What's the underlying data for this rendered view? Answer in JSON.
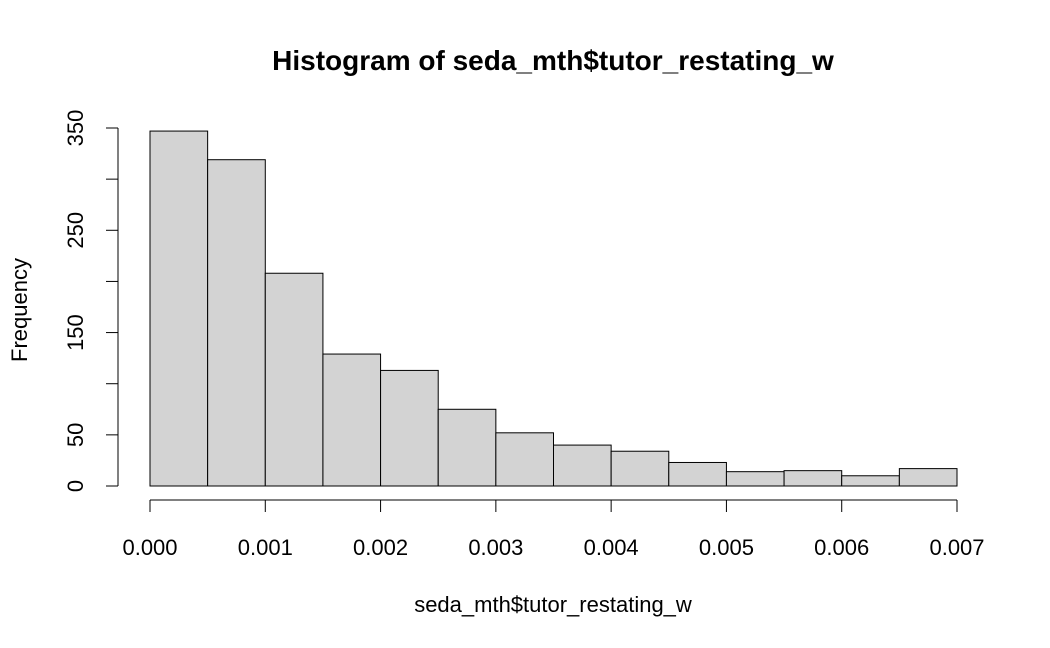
{
  "chart_data": {
    "type": "bar",
    "title": "Histogram of seda_mth$tutor_restating_w",
    "xlabel": "seda_mth$tutor_restating_w",
    "ylabel": "Frequency",
    "bins": [
      {
        "start": 0.0,
        "end": 0.0005,
        "count": 347
      },
      {
        "start": 0.0005,
        "end": 0.001,
        "count": 319
      },
      {
        "start": 0.001,
        "end": 0.0015,
        "count": 208
      },
      {
        "start": 0.0015,
        "end": 0.002,
        "count": 129
      },
      {
        "start": 0.002,
        "end": 0.0025,
        "count": 113
      },
      {
        "start": 0.0025,
        "end": 0.003,
        "count": 75
      },
      {
        "start": 0.003,
        "end": 0.0035,
        "count": 52
      },
      {
        "start": 0.0035,
        "end": 0.004,
        "count": 40
      },
      {
        "start": 0.004,
        "end": 0.0045,
        "count": 34
      },
      {
        "start": 0.0045,
        "end": 0.005,
        "count": 23
      },
      {
        "start": 0.005,
        "end": 0.0055,
        "count": 14
      },
      {
        "start": 0.0055,
        "end": 0.006,
        "count": 15
      },
      {
        "start": 0.006,
        "end": 0.0065,
        "count": 10
      },
      {
        "start": 0.0065,
        "end": 0.007,
        "count": 17
      }
    ],
    "xlim": [
      0,
      0.007
    ],
    "ylim": [
      0,
      350
    ],
    "x_ticks": [
      0,
      0.001,
      0.002,
      0.003,
      0.004,
      0.005,
      0.006,
      0.007
    ],
    "x_tick_labels": [
      "0.000",
      "0.001",
      "0.002",
      "0.003",
      "0.004",
      "0.005",
      "0.006",
      "0.007"
    ],
    "y_ticks": [
      0,
      50,
      100,
      150,
      200,
      250,
      300,
      350
    ],
    "y_tick_labels": [
      "0",
      "50",
      "",
      "150",
      "",
      "250",
      "",
      "350"
    ],
    "grid": false,
    "colors": {
      "bar_fill": "#d3d3d3",
      "bar_stroke": "#000000"
    }
  }
}
